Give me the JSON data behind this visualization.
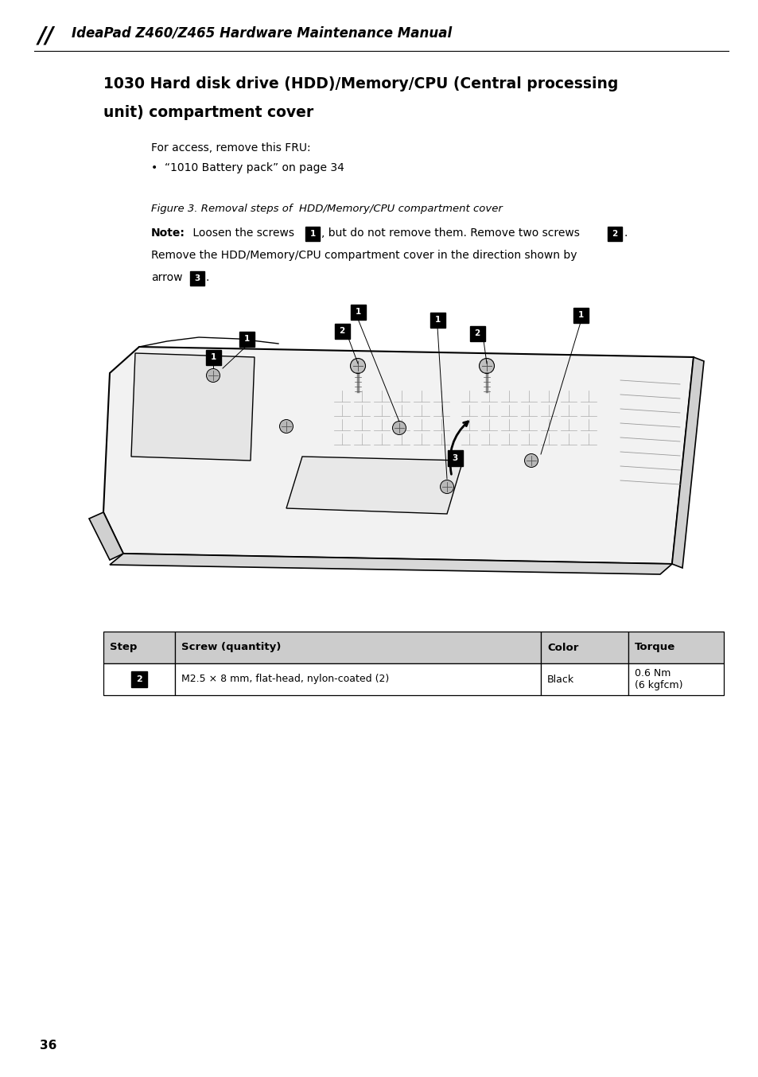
{
  "page_width": 9.54,
  "page_height": 13.54,
  "background_color": "#ffffff",
  "header_text": "IdeaPad Z460/Z465 Hardware Maintenance Manual",
  "section_title_line1": "1030 Hard disk drive (HDD)/Memory/CPU (Central processing",
  "section_title_line2": "unit) compartment cover",
  "body_text_line1": "For access, remove this FRU:",
  "body_bullet": "•  “1010 Battery pack” on page 34",
  "figure_caption": "Figure 3. Removal steps of  HDD/Memory/CPU compartment cover",
  "note_bold": "Note:",
  "note_line2": "Remove the HDD/Memory/CPU compartment cover in the direction shown by",
  "note_line3": "arrow",
  "table_headers": [
    "Step",
    "Screw (quantity)",
    "Color",
    "Torque"
  ],
  "table_row_step": "2",
  "table_row_screw": "M2.5 × 8 mm, flat-head, nylon-coated (2)",
  "table_row_color": "Black",
  "table_row_torque_line1": "0.6 Nm",
  "table_row_torque_line2": "(6 kgfcm)",
  "page_number": "36",
  "table_border_color": "#000000",
  "table_header_bg": "#cccccc"
}
